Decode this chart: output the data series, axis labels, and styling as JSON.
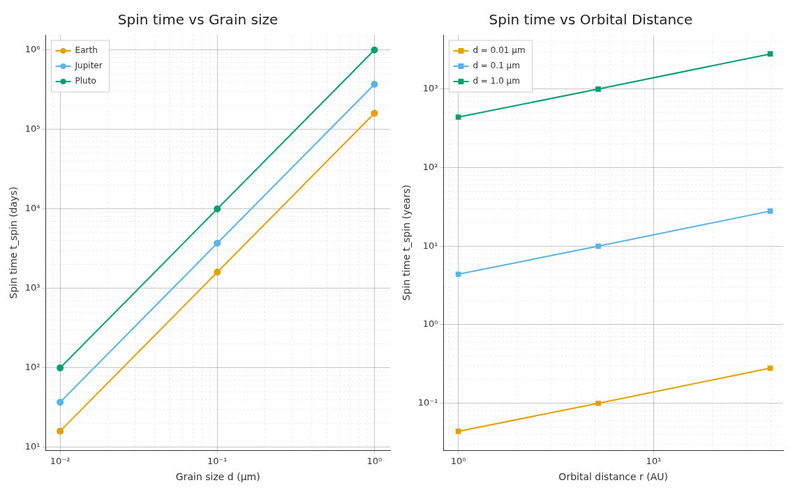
{
  "chart_data": [
    {
      "type": "line",
      "title": "Spin time vs Grain size",
      "xlabel": "Grain size d (μm)",
      "ylabel": "Spin time t_spin (days)",
      "x": [
        0.01,
        0.1,
        1
      ],
      "log": "xy",
      "grid": true,
      "legend": "top left",
      "marker": "circle",
      "line_style": "solid",
      "xlim": [
        0.0081,
        1.26
      ],
      "ylim": [
        9.1,
        1550000
      ],
      "xticks": [
        {
          "value": 0.01,
          "label": "10⁻²"
        },
        {
          "value": 0.1,
          "label": "10⁻¹"
        },
        {
          "value": 1,
          "label": "10⁰"
        }
      ],
      "yticks": [
        {
          "value": 10,
          "label": "10¹"
        },
        {
          "value": 100,
          "label": "10²"
        },
        {
          "value": 1000,
          "label": "10³"
        },
        {
          "value": 10000,
          "label": "10⁴"
        },
        {
          "value": 100000,
          "label": "10⁵"
        },
        {
          "value": 1000000,
          "label": "10⁶"
        }
      ],
      "series": [
        {
          "name": "Earth",
          "color": "#e69f00",
          "values": [
            16,
            1600,
            160000
          ]
        },
        {
          "name": "Jupiter",
          "color": "#56b4e9",
          "values": [
            37,
            3700,
            370000
          ]
        },
        {
          "name": "Pluto",
          "color": "#009e73",
          "values": [
            100,
            10000,
            1000000
          ]
        }
      ]
    },
    {
      "type": "line",
      "title": "Spin time vs Orbital Distance",
      "xlabel": "Orbital distance r (AU)",
      "ylabel": "Spin time t_spin (years)",
      "x": [
        1,
        5.2,
        39.5
      ],
      "log": "xy",
      "grid": true,
      "legend": "top left",
      "marker": "square",
      "line_style": "solid",
      "xlim": [
        0.84,
        46
      ],
      "ylim": [
        0.025,
        4900
      ],
      "xticks": [
        {
          "value": 1,
          "label": "10⁰"
        },
        {
          "value": 10,
          "label": "10¹"
        }
      ],
      "yticks": [
        {
          "value": 0.1,
          "label": "10⁻¹"
        },
        {
          "value": 1,
          "label": "10⁰"
        },
        {
          "value": 10,
          "label": "10¹"
        },
        {
          "value": 100,
          "label": "10²"
        },
        {
          "value": 1000,
          "label": "10³"
        }
      ],
      "series": [
        {
          "name": "d = 0.01 μm",
          "color": "#e69f00",
          "values": [
            0.044,
            0.1,
            0.28
          ]
        },
        {
          "name": "d = 0.1 μm",
          "color": "#56b4e9",
          "values": [
            4.4,
            10,
            28
          ]
        },
        {
          "name": "d = 1.0 μm",
          "color": "#009e73",
          "values": [
            440,
            1000,
            2800
          ]
        }
      ]
    }
  ]
}
